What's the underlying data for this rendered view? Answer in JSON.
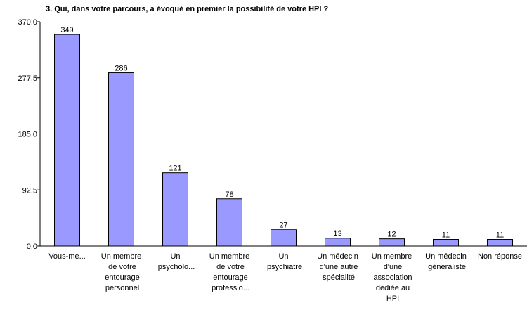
{
  "chart_data": {
    "type": "bar",
    "title": "3. Qui, dans votre parcours, a évoqué en premier la possibilité de votre HPI ?",
    "categories": [
      "Vous-me...",
      "Un membre de votre entourage personnel",
      "Un psycholo...",
      "Un membre de votre entourage professio...",
      "Un psychiatre",
      "Un médecin d'une autre spécialité",
      "Un membre d'une association dédiée au HPI",
      "Un médecin généraliste",
      "Non réponse"
    ],
    "values": [
      349,
      286,
      121,
      78,
      27,
      13,
      12,
      11,
      11
    ],
    "color": "#9999ff",
    "ylim": [
      0,
      370
    ],
    "yticks": [
      {
        "value": 0,
        "label": "0,0"
      },
      {
        "value": 92.5,
        "label": "92,5"
      },
      {
        "value": 185,
        "label": "185,0"
      },
      {
        "value": 277.5,
        "label": "277,5"
      },
      {
        "value": 370,
        "label": "370,0"
      }
    ],
    "grid": false
  }
}
